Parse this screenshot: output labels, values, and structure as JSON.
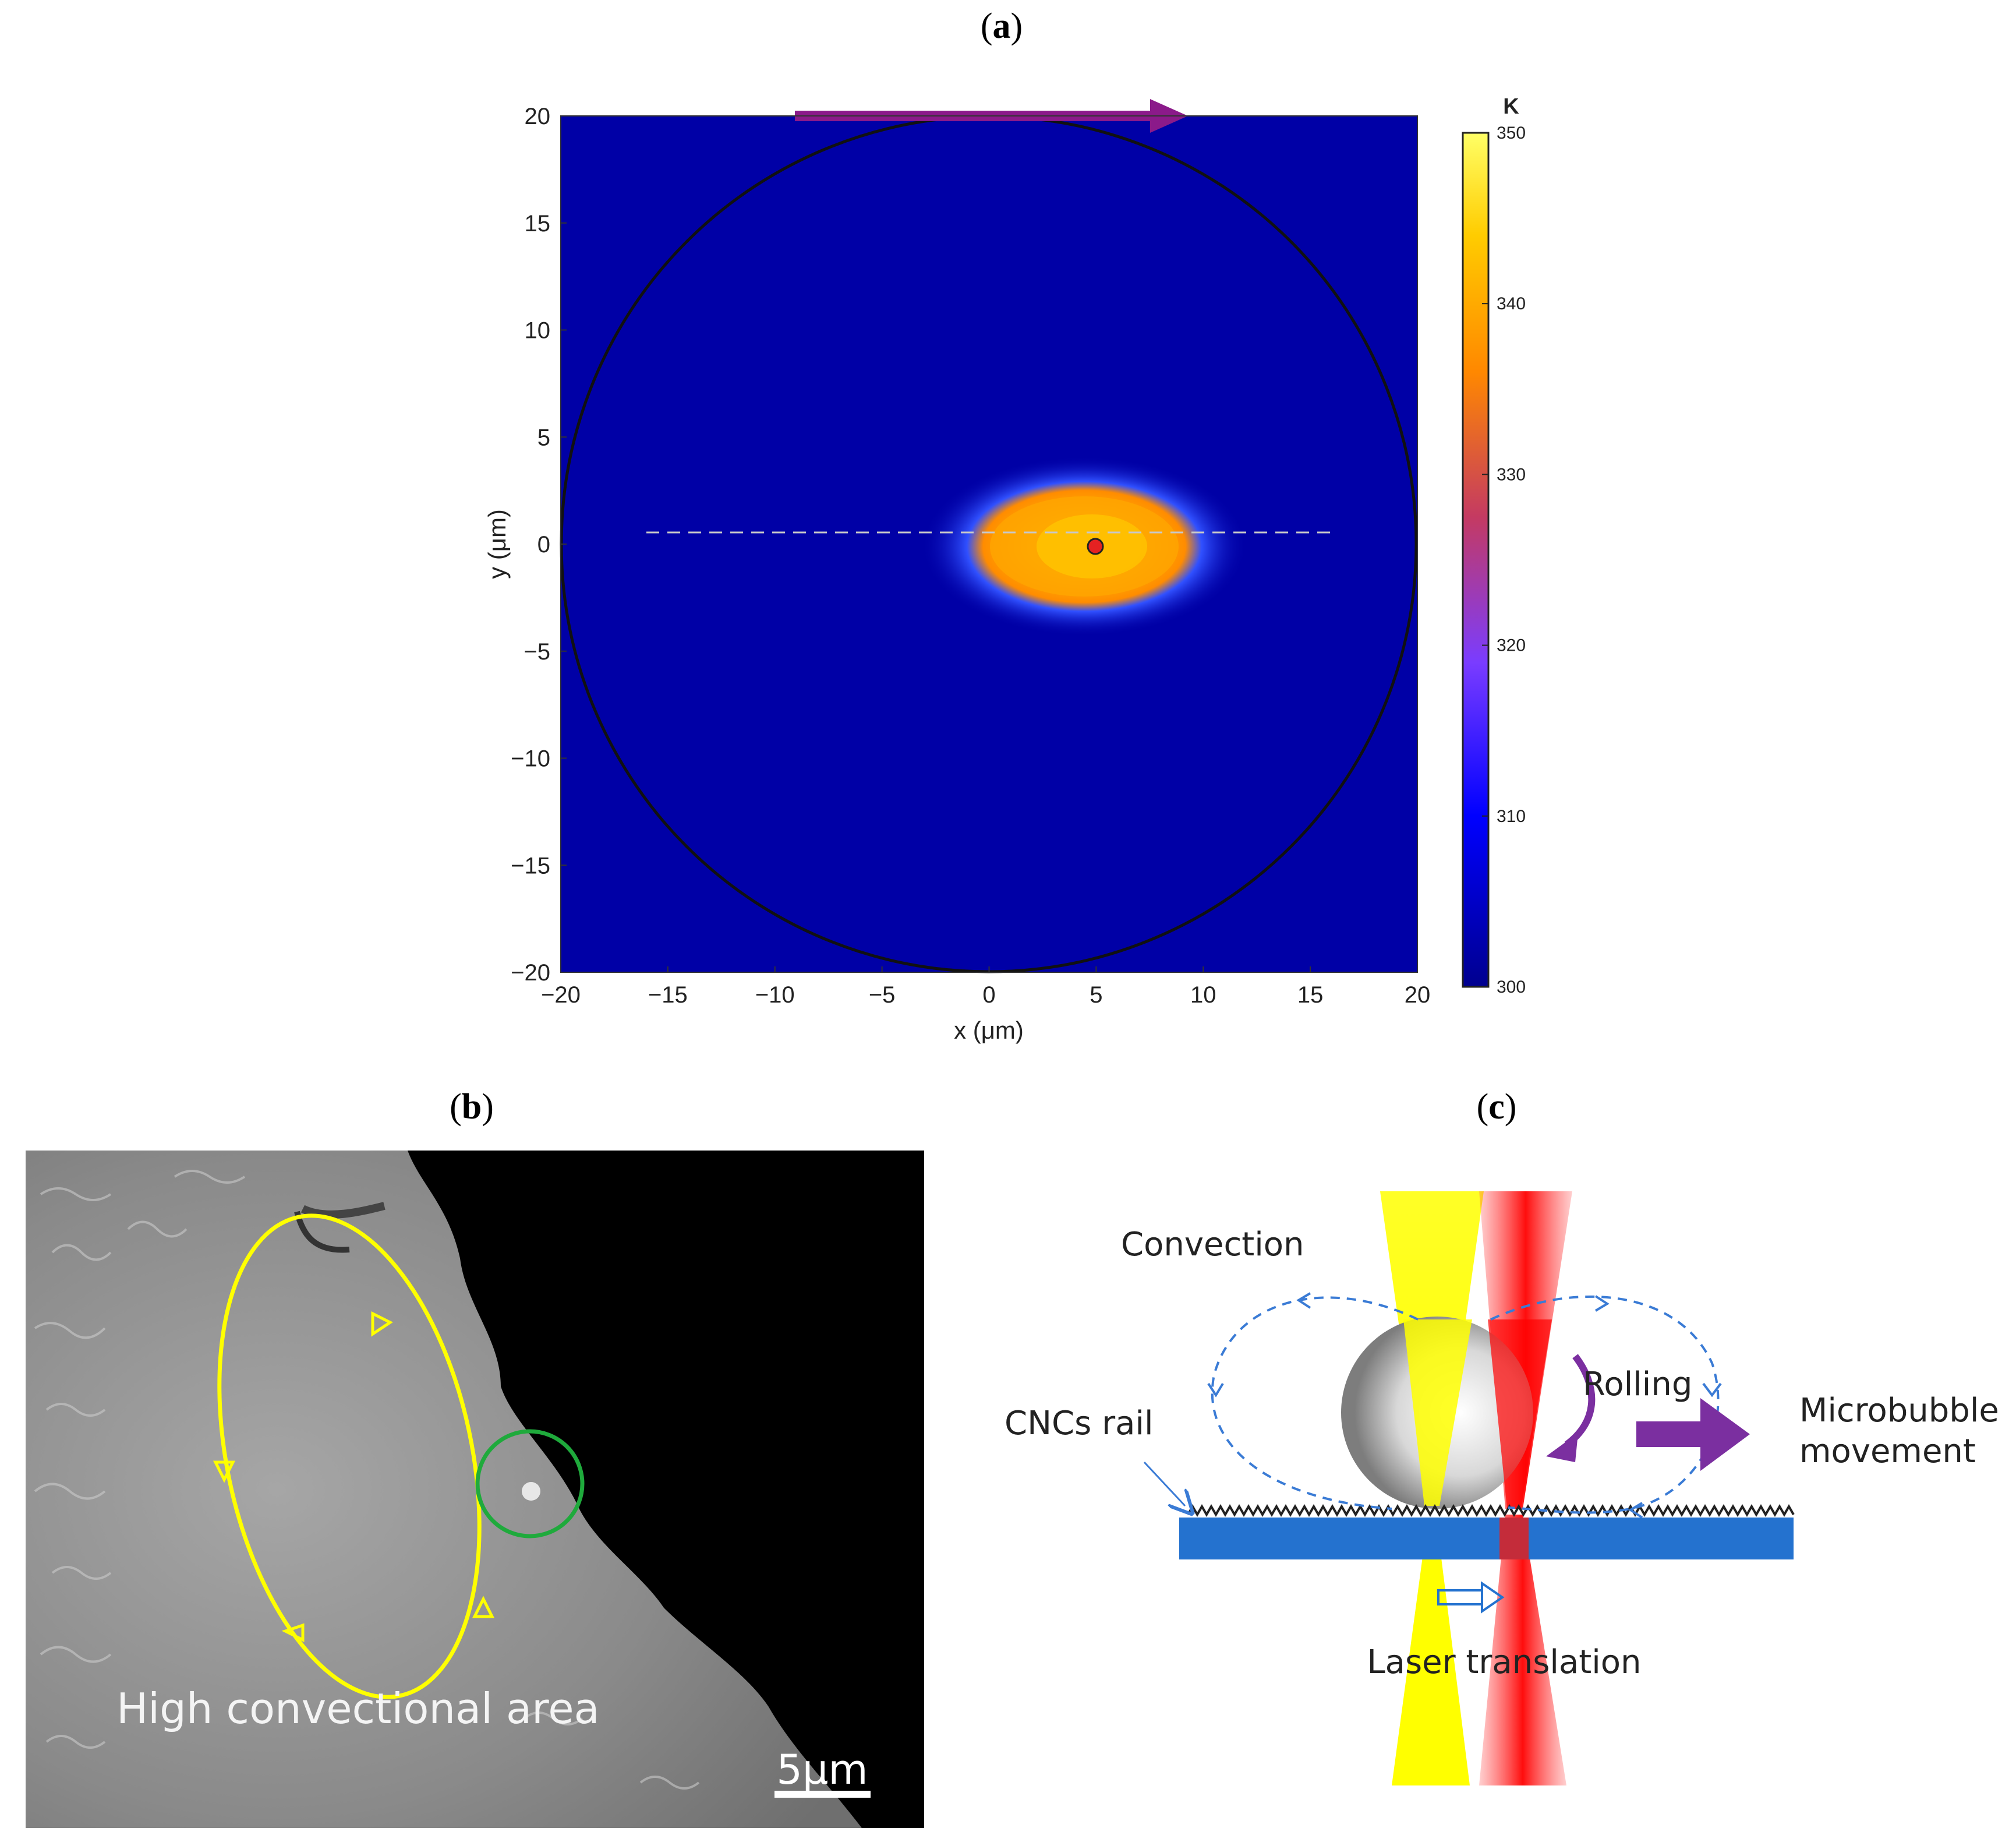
{
  "panels": {
    "a": {
      "label_open": "(",
      "label_letter": "a",
      "label_close": ")",
      "xlabel": "x (μm)",
      "ylabel": "y (μm)",
      "x_ticks": [
        "−20",
        "−15",
        "−10",
        "−5",
        "0",
        "5",
        "10",
        "15",
        "20"
      ],
      "y_ticks": [
        "20",
        "15",
        "10",
        "5",
        "0",
        "−5",
        "−10",
        "−15",
        "−20"
      ],
      "colorbar": {
        "unit": "K",
        "ticks": [
          "350",
          "340",
          "330",
          "320",
          "310",
          "300"
        ],
        "range": [
          300,
          350
        ],
        "colors": [
          "#00008f",
          "#0000ff",
          "#7a3cff",
          "#c43a62",
          "#ff8800",
          "#ffcc00",
          "#ffff66"
        ]
      },
      "background_color": "#0000a6",
      "hotspot_center": [
        5,
        0
      ],
      "arrow_color": "#8b1a8a"
    },
    "b": {
      "label_open": "(",
      "label_letter": "b",
      "label_close": ")",
      "annotation": "High convectional area",
      "scale_bar": "5μm",
      "loop_color": "#ffff00",
      "circle_color": "#1faa3c"
    },
    "c": {
      "label_open": "(",
      "label_letter": "c",
      "label_close": ")",
      "convection": "Convection",
      "rolling": "Rolling",
      "rail": "CNCs rail",
      "movement_line1": "Microbubble",
      "movement_line2": "movement",
      "translation": "Laser translation",
      "substrate_color": "#2472cf",
      "arrow_color": "#7b2fa0"
    }
  }
}
